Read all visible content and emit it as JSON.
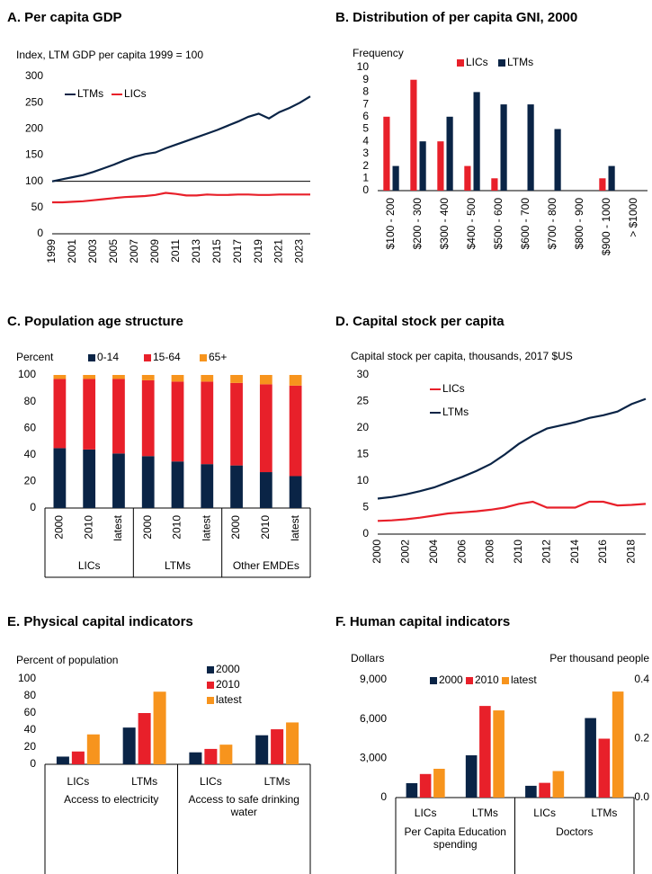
{
  "chart_data": [
    {
      "type": "line",
      "title": "A. Per capita GDP",
      "y_label": "Index, LTM GDP per capita 1999 = 100",
      "x": [
        1999,
        2000,
        2001,
        2002,
        2003,
        2004,
        2005,
        2006,
        2007,
        2008,
        2009,
        2010,
        2011,
        2012,
        2013,
        2014,
        2015,
        2016,
        2017,
        2018,
        2019,
        2020,
        2021,
        2022,
        2023,
        2024
      ],
      "series": [
        {
          "name": "LTMs",
          "color": "#0a2446",
          "values": [
            100,
            104,
            108,
            112,
            118,
            125,
            132,
            140,
            147,
            152,
            155,
            163,
            170,
            177,
            184,
            191,
            198,
            206,
            214,
            223,
            229,
            220,
            232,
            240,
            250,
            262
          ]
        },
        {
          "name": "LICs",
          "color": "#e8202a",
          "values": [
            60,
            60,
            61,
            62,
            64,
            66,
            68,
            70,
            71,
            72,
            74,
            78,
            76,
            73,
            73,
            75,
            74,
            74,
            75,
            75,
            74,
            74,
            75,
            75,
            75,
            75
          ]
        }
      ],
      "xlim": [
        1999,
        2024
      ],
      "xticks": [
        1999,
        2001,
        2003,
        2005,
        2007,
        2009,
        2011,
        2013,
        2015,
        2017,
        2019,
        2021,
        2023
      ],
      "ylim": [
        0,
        300
      ],
      "yticks": [
        0,
        50,
        100,
        150,
        200,
        250,
        300
      ],
      "reference_line": 100,
      "grid": false
    },
    {
      "type": "bar",
      "title": "B. Distribution of per capita GNI, 2000",
      "y_label": "Frequency",
      "categories": [
        "$100 - 200",
        "$200 - 300",
        "$300 - 400",
        "$400 - 500",
        "$500 - 600",
        "$600 - 700",
        "$700 - 800",
        "$800 - 900",
        "$900 - 1000",
        "> $1000"
      ],
      "series": [
        {
          "name": "LICs",
          "color": "#e8202a",
          "values": [
            6,
            9,
            4,
            2,
            1,
            0,
            0,
            0,
            1,
            0
          ]
        },
        {
          "name": "LTMs",
          "color": "#0a2446",
          "values": [
            2,
            4,
            6,
            8,
            7,
            7,
            5,
            0,
            2,
            0
          ]
        }
      ],
      "ylim": [
        0,
        10
      ],
      "yticks": [
        0,
        1,
        2,
        3,
        4,
        5,
        6,
        7,
        8,
        9,
        10
      ],
      "grid": false
    },
    {
      "type": "stacked_bar",
      "title": "C. Population age structure",
      "y_label": "Percent",
      "categories": [
        "2000",
        "2010",
        "latest",
        "2000",
        "2010",
        "latest",
        "2000",
        "2010",
        "latest"
      ],
      "groups": [
        "LICs",
        "LTMs",
        "Other EMDEs"
      ],
      "series": [
        {
          "name": "0-14",
          "color": "#0a2446",
          "values": [
            45,
            44,
            41,
            39,
            35,
            33,
            32,
            27,
            24
          ]
        },
        {
          "name": "15-64",
          "color": "#e8202a",
          "values": [
            52,
            53,
            56,
            57,
            60,
            62,
            62,
            66,
            68
          ]
        },
        {
          "name": "65+",
          "color": "#f7941d",
          "values": [
            3,
            3,
            3,
            4,
            5,
            5,
            6,
            7,
            8
          ]
        }
      ],
      "ylim": [
        0,
        100
      ],
      "yticks": [
        0,
        20,
        40,
        60,
        80,
        100
      ],
      "grid": false
    },
    {
      "type": "line",
      "title": "D. Capital stock per capita",
      "y_label": "Capital stock per capita, thousands, 2017 $US",
      "x": [
        2000,
        2001,
        2002,
        2003,
        2004,
        2005,
        2006,
        2007,
        2008,
        2009,
        2010,
        2011,
        2012,
        2013,
        2014,
        2015,
        2016,
        2017,
        2018,
        2019
      ],
      "series": [
        {
          "name": "LICs",
          "color": "#e8202a",
          "values": [
            2.5,
            2.6,
            2.8,
            3.1,
            3.5,
            3.9,
            4.1,
            4.3,
            4.6,
            5.0,
            5.7,
            6.1,
            5.0,
            5.0,
            5.0,
            6.1,
            6.1,
            5.4,
            5.5,
            5.7
          ]
        },
        {
          "name": "LTMs",
          "color": "#0a2446",
          "values": [
            6.7,
            7.0,
            7.5,
            8.1,
            8.8,
            9.8,
            10.8,
            11.9,
            13.2,
            15.0,
            17.0,
            18.6,
            19.9,
            20.5,
            21.1,
            21.9,
            22.4,
            23.1,
            24.5,
            25.5
          ]
        }
      ],
      "xlim": [
        2000,
        2019
      ],
      "xticks": [
        2000,
        2002,
        2004,
        2006,
        2008,
        2010,
        2012,
        2014,
        2016,
        2018
      ],
      "ylim": [
        0,
        30
      ],
      "yticks": [
        0,
        5,
        10,
        15,
        20,
        25,
        30
      ],
      "grid": false
    },
    {
      "type": "bar",
      "title": "E. Physical capital indicators",
      "y_label": "Percent of population",
      "categories": [
        "LICs",
        "LTMs",
        "LICs",
        "LTMs"
      ],
      "groups": [
        "Access to electricity",
        "Access to safe drinking water"
      ],
      "series": [
        {
          "name": "2000",
          "color": "#0a2446",
          "values": [
            9,
            43,
            14,
            34
          ]
        },
        {
          "name": "2010",
          "color": "#e8202a",
          "values": [
            15,
            60,
            18,
            41
          ]
        },
        {
          "name": "latest",
          "color": "#f7941d",
          "values": [
            35,
            85,
            23,
            49
          ]
        }
      ],
      "ylim": [
        0,
        100
      ],
      "yticks": [
        0,
        20,
        40,
        60,
        80,
        100
      ],
      "grid": false
    },
    {
      "type": "bar",
      "title": "F. Human capital indicators",
      "y_label": "Dollars",
      "y2_label": "Per thousand people",
      "categories": [
        "LICs",
        "LTMs",
        "LICs",
        "LTMs"
      ],
      "groups": [
        "Per Capita Education spending",
        "Doctors"
      ],
      "category_axis": [
        "y",
        "y",
        "y2",
        "y2"
      ],
      "series": [
        {
          "name": "2000",
          "color": "#0a2446",
          "values": [
            1100,
            3230,
            0.04,
            0.27
          ]
        },
        {
          "name": "2010",
          "color": "#e8202a",
          "values": [
            1800,
            7000,
            0.05,
            0.2
          ]
        },
        {
          "name": "latest",
          "color": "#f7941d",
          "values": [
            2200,
            6660,
            0.09,
            0.36
          ]
        }
      ],
      "ylim": [
        0,
        9000
      ],
      "yticks": [
        0,
        {
          "value": 3000,
          "label": "3,000"
        },
        {
          "value": 6000,
          "label": "6,000"
        },
        {
          "value": 9000,
          "label": "9,000"
        }
      ],
      "y2lim": [
        0,
        0.4
      ],
      "y2ticks": [
        {
          "value": 0,
          "label": "0.0"
        },
        0.2,
        0.4
      ],
      "grid": false
    }
  ]
}
